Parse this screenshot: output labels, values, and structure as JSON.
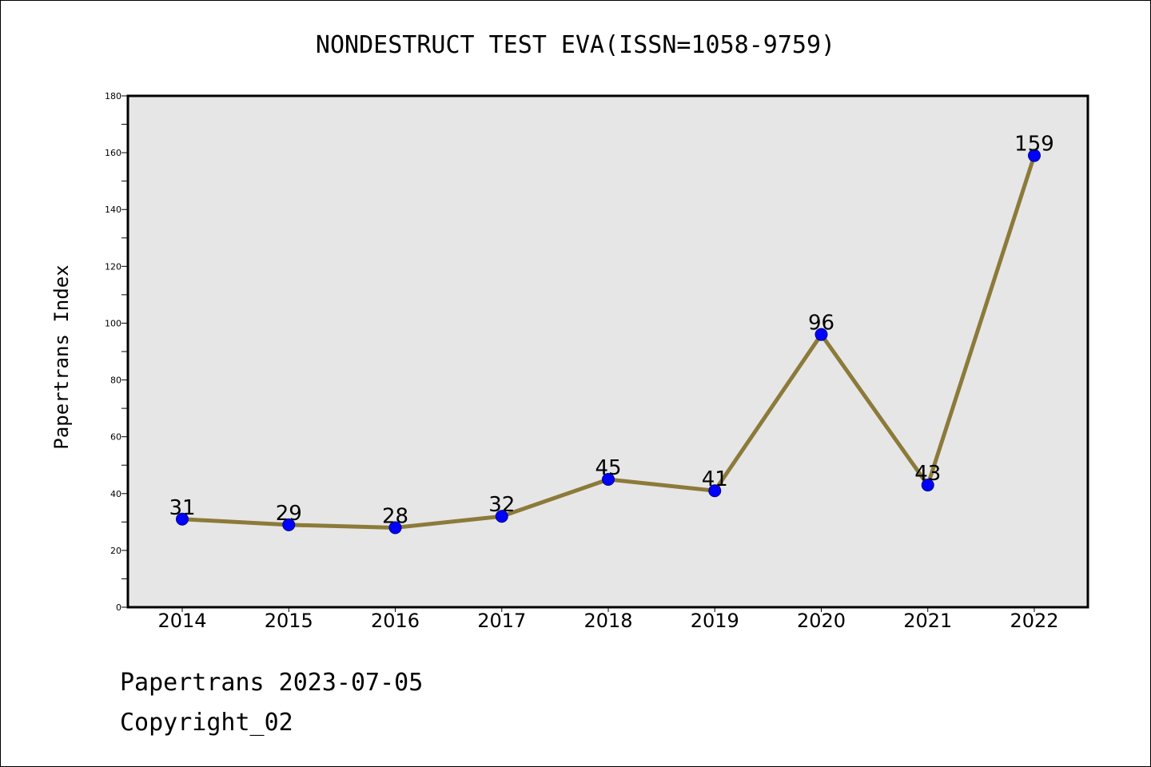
{
  "chart_data": {
    "type": "line",
    "title": "NONDESTRUCT TEST EVA(ISSN=1058-9759)",
    "ylabel": "Papertrans Index",
    "xlabel": "",
    "categories": [
      "2014",
      "2015",
      "2016",
      "2017",
      "2018",
      "2019",
      "2020",
      "2021",
      "2022"
    ],
    "values": [
      31,
      29,
      28,
      32,
      45,
      41,
      96,
      43,
      159
    ],
    "ylim": [
      0,
      180
    ],
    "yticks": [
      0,
      20,
      40,
      60,
      80,
      100,
      120,
      140,
      160,
      180
    ],
    "grid": false,
    "line_color": "#8c7a3a",
    "marker_color": "#0000ff",
    "plot_background": "#e6e6e6"
  },
  "footer": {
    "line1": "Papertrans 2023-07-05",
    "line2": "Copyright_02"
  }
}
